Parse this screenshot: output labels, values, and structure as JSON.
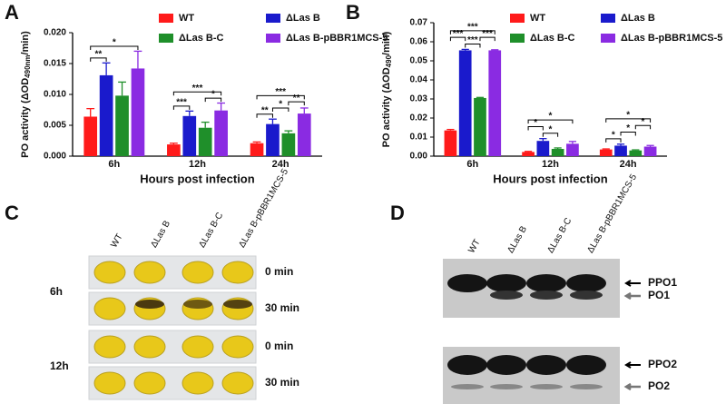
{
  "chart_data": [
    {
      "type": "bar",
      "panel_label": "A",
      "y_label": [
        "PO activity (ΔOD",
        "490nm",
        "/min)"
      ],
      "x_label": "Hours post infection",
      "categories": [
        "6h",
        "12h",
        "24h"
      ],
      "series": [
        {
          "name": "WT",
          "color": "#ff1a1a",
          "values": [
            0.0064,
            0.0019,
            0.0021
          ],
          "errors": [
            0.0013,
            0.0002,
            0.0002
          ]
        },
        {
          "name": "ΔLas B",
          "color": "#1a1acc",
          "values": [
            0.0131,
            0.0065,
            0.0052
          ],
          "errors": [
            0.002,
            0.0008,
            0.0008
          ]
        },
        {
          "name": "ΔLas B-C",
          "color": "#1f8f2a",
          "values": [
            0.0098,
            0.0046,
            0.0037
          ],
          "errors": [
            0.0022,
            0.0009,
            0.0004
          ]
        },
        {
          "name": "ΔLas B-pBBR1MCS-5",
          "color": "#8a2be2",
          "values": [
            0.0142,
            0.0074,
            0.0069
          ],
          "errors": [
            0.0028,
            0.0012,
            0.0009
          ]
        }
      ],
      "ylim": [
        0,
        0.02
      ],
      "yticks": [
        {
          "value": 0,
          "label": "0.000"
        },
        {
          "value": 0.005,
          "label": "0.005"
        },
        {
          "value": 0.01,
          "label": "0.010"
        },
        {
          "value": 0.015,
          "label": "0.015"
        },
        {
          "value": 0.02,
          "label": "0.020"
        }
      ],
      "significance": [
        {
          "category": 0,
          "from": 0,
          "to": 1,
          "label": "**"
        },
        {
          "category": 0,
          "from": 0,
          "to": 3,
          "label": "*"
        },
        {
          "category": 1,
          "from": 0,
          "to": 1,
          "label": "***"
        },
        {
          "category": 1,
          "from": 2,
          "to": 3,
          "label": "*"
        },
        {
          "category": 1,
          "from": 0,
          "to": 3,
          "label": "***"
        },
        {
          "category": 2,
          "from": 0,
          "to": 1,
          "label": "**"
        },
        {
          "category": 2,
          "from": 1,
          "to": 2,
          "label": "*"
        },
        {
          "category": 2,
          "from": 2,
          "to": 3,
          "label": "**"
        },
        {
          "category": 2,
          "from": 0,
          "to": 3,
          "label": "***"
        }
      ]
    },
    {
      "type": "bar",
      "panel_label": "B",
      "y_label": [
        "PO activity (ΔOD",
        "490",
        "/min)"
      ],
      "x_label": "Hours post infection",
      "categories": [
        "6h",
        "12h",
        "24h"
      ],
      "series": [
        {
          "name": "WT",
          "color": "#ff1a1a",
          "values": [
            0.0135,
            0.0022,
            0.0035
          ],
          "errors": [
            0.0005,
            0.0003,
            0.0003
          ]
        },
        {
          "name": "ΔLas B",
          "color": "#1a1acc",
          "values": [
            0.0555,
            0.008,
            0.0055
          ],
          "errors": [
            0.0005,
            0.0012,
            0.0008
          ]
        },
        {
          "name": "ΔLas B-C",
          "color": "#1f8f2a",
          "values": [
            0.0305,
            0.0038,
            0.003
          ],
          "errors": [
            0.0003,
            0.0005,
            0.0003
          ]
        },
        {
          "name": "ΔLas B-pBBR1MCS-5",
          "color": "#8a2be2",
          "values": [
            0.0555,
            0.0065,
            0.005
          ],
          "errors": [
            0.0003,
            0.0012,
            0.0006
          ]
        }
      ],
      "ylim": [
        0,
        0.07
      ],
      "yticks": [
        {
          "value": 0,
          "label": "0.00"
        },
        {
          "value": 0.01,
          "label": "0.01"
        },
        {
          "value": 0.02,
          "label": "0.02"
        },
        {
          "value": 0.03,
          "label": "0.03"
        },
        {
          "value": 0.04,
          "label": "0.04"
        },
        {
          "value": 0.05,
          "label": "0.05"
        },
        {
          "value": 0.06,
          "label": "0.06"
        },
        {
          "value": 0.07,
          "label": "0.07"
        }
      ],
      "significance": [
        {
          "category": 0,
          "from": 1,
          "to": 2,
          "label": "***"
        },
        {
          "category": 0,
          "from": 0,
          "to": 1,
          "label": "***"
        },
        {
          "category": 0,
          "from": 2,
          "to": 3,
          "label": "***"
        },
        {
          "category": 0,
          "from": 0,
          "to": 3,
          "label": "***"
        },
        {
          "category": 1,
          "from": 1,
          "to": 2,
          "label": "*"
        },
        {
          "category": 1,
          "from": 0,
          "to": 1,
          "label": "*"
        },
        {
          "category": 1,
          "from": 0,
          "to": 3,
          "label": "*"
        },
        {
          "category": 2,
          "from": 0,
          "to": 1,
          "label": "*"
        },
        {
          "category": 2,
          "from": 1,
          "to": 2,
          "label": "*"
        },
        {
          "category": 2,
          "from": 2,
          "to": 3,
          "label": "*"
        },
        {
          "category": 2,
          "from": 0,
          "to": 3,
          "label": "*"
        }
      ]
    }
  ],
  "photo_panel": {
    "panel_label": "C",
    "columns": [
      "WT",
      "ΔLas B",
      "ΔLas B-C",
      "ΔLas B-pBBR1MCS-5"
    ],
    "groups": [
      {
        "label": "6h",
        "rows": [
          "0 min",
          "30 min"
        ]
      },
      {
        "label": "12h",
        "rows": [
          "0 min",
          "30 min"
        ]
      }
    ]
  },
  "blot_panel": {
    "panel_label": "D",
    "columns": [
      "WT",
      "ΔLas B",
      "ΔLas B-C",
      "ΔLas B-pBBR1MCS-5"
    ],
    "blots": [
      {
        "bands": [
          "PPO1",
          "PO1"
        ]
      },
      {
        "bands": [
          "PPO2",
          "PO2"
        ]
      }
    ]
  }
}
